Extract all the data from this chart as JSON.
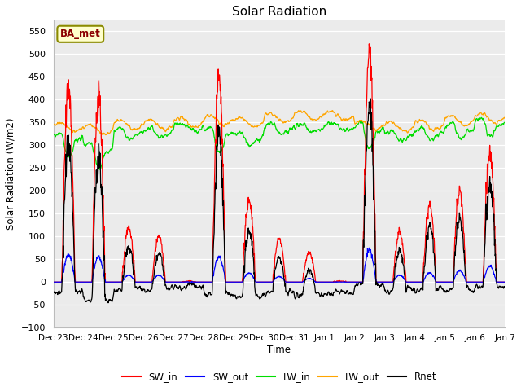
{
  "title": "Solar Radiation",
  "ylabel": "Solar Radiation (W/m2)",
  "xlabel": "Time",
  "ylim": [
    -100,
    575
  ],
  "yticks": [
    -100,
    -50,
    0,
    50,
    100,
    150,
    200,
    250,
    300,
    350,
    400,
    450,
    500,
    550
  ],
  "xtick_labels": [
    "Dec 23",
    "Dec 24",
    "Dec 25",
    "Dec 26",
    "Dec 27",
    "Dec 28",
    "Dec 29",
    "Dec 30",
    "Dec 31",
    "Jan 1",
    "Jan 2",
    "Jan 3",
    "Jan 4",
    "Jan 5",
    "Jan 6",
    "Jan 7"
  ],
  "annotation_text": "BA_met",
  "annotation_color": "#8B0000",
  "annotation_box_color": "#FFFFCC",
  "annotation_box_edge": "#8B8B00",
  "line_colors": {
    "SW_in": "#FF0000",
    "SW_out": "#0000FF",
    "LW_in": "#00DD00",
    "LW_out": "#FFA500",
    "Rnet": "#000000"
  },
  "background_color": "#ebebeb",
  "grid_color": "#ffffff",
  "n_days": 15,
  "pts_per_day": 96,
  "seed": 42,
  "sw_in_peaks": [
    430,
    410,
    120,
    100,
    2,
    450,
    180,
    95,
    65,
    2,
    510,
    110,
    170,
    200,
    290
  ],
  "sw_out_peaks": [
    60,
    55,
    15,
    15,
    0,
    55,
    20,
    12,
    8,
    0,
    70,
    15,
    20,
    25,
    35
  ],
  "lw_in_night": [
    320,
    295,
    330,
    330,
    340,
    330,
    320,
    340,
    340,
    340,
    340,
    325,
    330,
    340,
    350
  ],
  "lw_out_base": [
    340,
    335,
    345,
    345,
    350,
    355,
    350,
    360,
    365,
    365,
    345,
    340,
    345,
    355,
    360
  ]
}
